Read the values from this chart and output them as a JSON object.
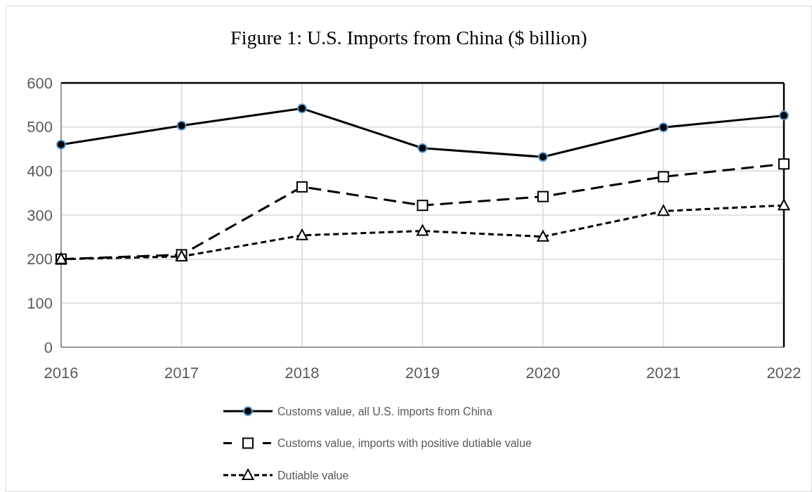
{
  "chart_data": {
    "type": "line",
    "title": "Figure 1: U.S. Imports from China ($ billion)",
    "categories": [
      "2016",
      "2017",
      "2018",
      "2019",
      "2020",
      "2021",
      "2022"
    ],
    "series": [
      {
        "name": "Customs value, all U.S. imports from China",
        "color": "#000000",
        "marker": "circle",
        "line_style": "solid",
        "values": [
          460,
          503,
          542,
          452,
          432,
          499,
          526
        ]
      },
      {
        "name": "Customs value, imports with positive dutiable value",
        "color": "#000000",
        "marker": "square",
        "line_style": "dashed",
        "values": [
          200,
          210,
          364,
          322,
          342,
          387,
          416
        ]
      },
      {
        "name": "Dutiable value",
        "color": "#000000",
        "marker": "triangle",
        "line_style": "dotted",
        "values": [
          200,
          206,
          254,
          264,
          251,
          309,
          322
        ]
      }
    ],
    "ylim": [
      0,
      600
    ],
    "yticks": [
      0,
      100,
      200,
      300,
      400,
      500,
      600
    ],
    "grid": true,
    "legend": "bottom"
  }
}
